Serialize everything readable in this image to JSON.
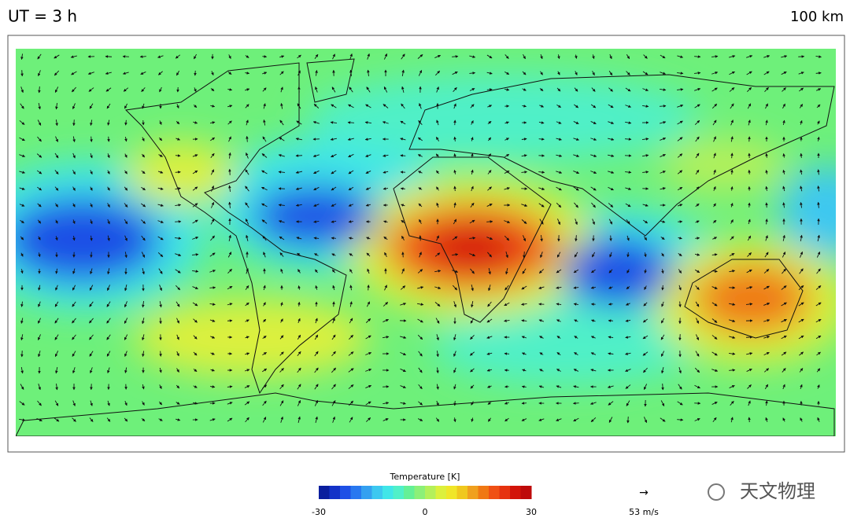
{
  "header": {
    "left": "UT =  3 h",
    "right": "100 km"
  },
  "colorbar": {
    "title": "Temperature [K]",
    "range": [
      -30,
      30
    ],
    "ticks": [
      -30,
      0,
      30
    ],
    "colors": [
      "#0a1e9e",
      "#1432c8",
      "#1e50e6",
      "#2878f0",
      "#34a0f0",
      "#3cc8f0",
      "#40e6e8",
      "#50f0c8",
      "#64f096",
      "#8cf078",
      "#b4f05a",
      "#dcf03c",
      "#f0e628",
      "#f0c81e",
      "#f0a01e",
      "#f07814",
      "#f05014",
      "#e6320f",
      "#d2140a",
      "#be0a0a"
    ]
  },
  "wind_scale": {
    "arrow": "→",
    "label": "53 m/s"
  },
  "watermark": "天文物理"
}
